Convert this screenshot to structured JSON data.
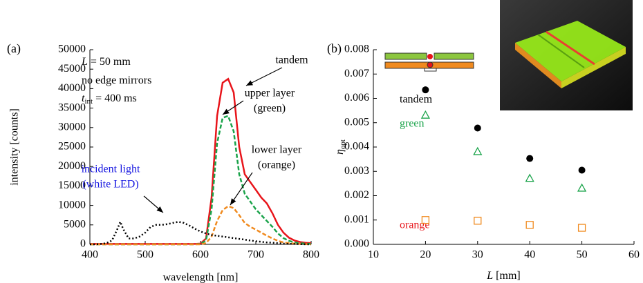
{
  "chart_data": [
    {
      "type": "line",
      "panel_label": "(a)",
      "x_label": "wavelength [nm]",
      "y_label": "intensity [counts]",
      "x": [
        400,
        410,
        420,
        430,
        440,
        450,
        455,
        460,
        470,
        480,
        490,
        500,
        510,
        520,
        530,
        540,
        550,
        560,
        570,
        580,
        590,
        600,
        610,
        620,
        630,
        640,
        650,
        660,
        670,
        680,
        690,
        700,
        710,
        720,
        730,
        740,
        750,
        760,
        770,
        780,
        790,
        800
      ],
      "series": [
        {
          "color": "#e8141a",
          "dash": "solid",
          "values": [
            100,
            100,
            100,
            100,
            100,
            100,
            100,
            100,
            100,
            100,
            100,
            100,
            100,
            100,
            100,
            100,
            100,
            100,
            100,
            100,
            100,
            200,
            1500,
            12000,
            33000,
            41500,
            42500,
            39000,
            25000,
            18000,
            16000,
            14000,
            12000,
            10500,
            8000,
            5000,
            3000,
            1700,
            1000,
            600,
            400,
            300
          ]
        },
        {
          "color": "#1aa34a",
          "dash": "dashed",
          "values": [
            0,
            0,
            0,
            0,
            0,
            0,
            0,
            0,
            0,
            0,
            0,
            0,
            0,
            0,
            0,
            0,
            0,
            0,
            0,
            0,
            0,
            100,
            1000,
            9000,
            26000,
            32500,
            33000,
            29000,
            18000,
            13000,
            11000,
            9000,
            7500,
            6000,
            4500,
            2800,
            1600,
            900,
            500,
            300,
            200,
            100
          ]
        },
        {
          "color": "#f08a1e",
          "dash": "dashed",
          "values": [
            0,
            0,
            0,
            0,
            0,
            0,
            0,
            0,
            0,
            0,
            0,
            0,
            0,
            0,
            0,
            0,
            0,
            0,
            0,
            0,
            0,
            0,
            300,
            2000,
            6000,
            8800,
            9800,
            9300,
            7500,
            5500,
            4500,
            3800,
            3000,
            2200,
            1500,
            900,
            500,
            300,
            200,
            100,
            50,
            0
          ]
        },
        {
          "color": "#000000",
          "dash": "dotted",
          "values": [
            0,
            0,
            100,
            300,
            1000,
            4000,
            5800,
            4000,
            1500,
            1500,
            2000,
            3000,
            4500,
            5000,
            5000,
            5200,
            5500,
            5800,
            5500,
            4800,
            4000,
            3300,
            2800,
            2400,
            2200,
            2000,
            1800,
            1600,
            1400,
            1200,
            1000,
            800,
            650,
            500,
            400,
            300,
            200,
            150,
            100,
            50,
            20,
            0
          ]
        }
      ],
      "xlim": [
        400,
        800
      ],
      "xticks": [
        400,
        500,
        600,
        700,
        800
      ],
      "ylim": [
        0,
        50000
      ],
      "yticks": [
        0,
        5000,
        10000,
        15000,
        20000,
        25000,
        30000,
        35000,
        40000,
        45000,
        50000
      ],
      "notes": [
        {
          "parts": [
            "L",
            " = 50 mm"
          ]
        },
        {
          "parts": [
            "no edge mirrors"
          ]
        },
        {
          "parts": [
            "t",
            "int",
            " = 400 ms"
          ]
        }
      ],
      "annotations": [
        {
          "lines": [
            "tandem"
          ],
          "color": "#000000"
        },
        {
          "lines": [
            "upper layer",
            "(green)"
          ],
          "color": "#000000"
        },
        {
          "lines": [
            "lower layer",
            "(orange)"
          ],
          "color": "#000000"
        },
        {
          "lines": [
            "incident light",
            "(white LED)"
          ],
          "color": "#1515e0"
        }
      ]
    },
    {
      "type": "scatter",
      "panel_label": "(b)",
      "x_label": {
        "parts": [
          "L",
          " [mm]"
        ]
      },
      "y_label": {
        "parts": [
          "η",
          "opt"
        ]
      },
      "x": [
        20,
        30,
        40,
        50
      ],
      "series": [
        {
          "name": "tandem",
          "color": "#000000",
          "label_color": "#000000",
          "marker": "circle",
          "values": [
            0.00635,
            0.00478,
            0.00353,
            0.00305
          ]
        },
        {
          "name": "green",
          "color": "#1aa34a",
          "label_color": "#1aa34a",
          "marker": "triangle",
          "values": [
            0.0053,
            0.0038,
            0.0027,
            0.0023
          ]
        },
        {
          "name": "orange",
          "color": "#f08a1e",
          "label_color": "#e8141a",
          "marker": "square",
          "values": [
            0.001,
            0.00097,
            0.0008,
            0.00068
          ]
        }
      ],
      "xlim": [
        10,
        60
      ],
      "xticks": [
        10,
        20,
        30,
        40,
        50,
        60
      ],
      "ylim": [
        0,
        0.008
      ],
      "yticks": [
        {
          "value": 0,
          "label": "0.000"
        },
        0.001,
        0.002,
        0.003,
        0.004,
        0.005,
        0.006,
        0.007,
        0.008
      ]
    }
  ]
}
